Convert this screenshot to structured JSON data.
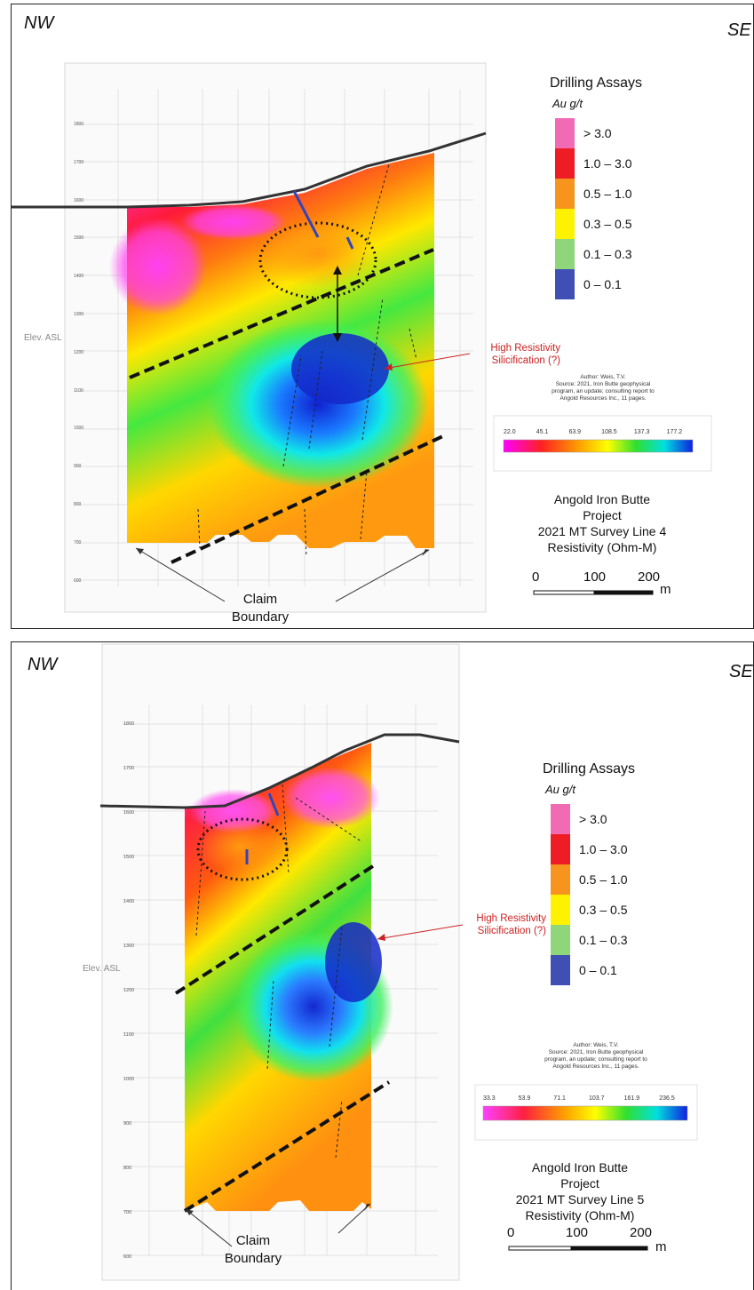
{
  "panels": [
    {
      "dir_left": "NW",
      "dir_right": "SE",
      "legend": {
        "title": "Drilling Assays",
        "unit": "Au g/t",
        "items": [
          {
            "label": "> 3.0",
            "color": "#f06ab4"
          },
          {
            "label": "1.0 – 3.0",
            "color": "#ee1c24"
          },
          {
            "label": "0.5 – 1.0",
            "color": "#f7941d"
          },
          {
            "label": "0.3 – 0.5",
            "color": "#fff200"
          },
          {
            "label": "0.1 – 0.3",
            "color": "#8fd67a"
          },
          {
            "label": "0 – 0.1",
            "color": "#3f4fb4"
          }
        ]
      },
      "annotation": [
        "High Resistivity",
        "Silicification (?)"
      ],
      "author": [
        "Author: Weis, T.V.",
        "Source: 2021, Iron Butte geophysical",
        "program, an update; consulting report to",
        "Angold Resources Inc., 11 pages."
      ],
      "colorbar_ticks": [
        "22.0",
        "45.1",
        "63.9",
        "108.5",
        "137.3",
        "177.2"
      ],
      "title_lines": [
        "Angold Iron Butte",
        "Project",
        "2021 MT Survey Line 4",
        "Resistivity (Ohm-M)"
      ],
      "scale": {
        "labels": [
          "0",
          "100",
          "200"
        ],
        "unit": "m"
      },
      "claim": [
        "Claim",
        "Boundary"
      ],
      "elev_label": "Elev. ASL",
      "y_ticks": [
        "1800",
        "1700",
        "1600",
        "1500",
        "1400",
        "1300",
        "1200",
        "1100",
        "1000",
        "900",
        "800",
        "700",
        "600"
      ]
    },
    {
      "dir_left": "NW",
      "dir_right": "SE",
      "legend": {
        "title": "Drilling Assays",
        "unit": "Au g/t",
        "items": [
          {
            "label": "> 3.0",
            "color": "#f06ab4"
          },
          {
            "label": "1.0 – 3.0",
            "color": "#ee1c24"
          },
          {
            "label": "0.5 – 1.0",
            "color": "#f7941d"
          },
          {
            "label": "0.3 – 0.5",
            "color": "#fff200"
          },
          {
            "label": "0.1 – 0.3",
            "color": "#8fd67a"
          },
          {
            "label": "0 – 0.1",
            "color": "#3f4fb4"
          }
        ]
      },
      "annotation": [
        "High Resistivity",
        "Silicification (?)"
      ],
      "author": [
        "Author: Weis, T.V.",
        "Source: 2021, Iron Butte geophysical",
        "program, an update; consulting report to",
        "Angold Resources Inc., 11 pages."
      ],
      "colorbar_ticks": [
        "33.3",
        "53.9",
        "71.1",
        "103.7",
        "161.9",
        "236.5"
      ],
      "title_lines": [
        "Angold Iron Butte",
        "Project",
        "2021 MT Survey Line 5",
        "Resistivity (Ohm-M)"
      ],
      "scale": {
        "labels": [
          "0",
          "100",
          "200"
        ],
        "unit": "m"
      },
      "claim": [
        "Claim",
        "Boundary"
      ],
      "elev_label": "Elev. ASL",
      "y_ticks": [
        "1800",
        "1700",
        "1600",
        "1500",
        "1400",
        "1300",
        "1200",
        "1100",
        "1000",
        "900",
        "800",
        "700",
        "600"
      ]
    }
  ]
}
